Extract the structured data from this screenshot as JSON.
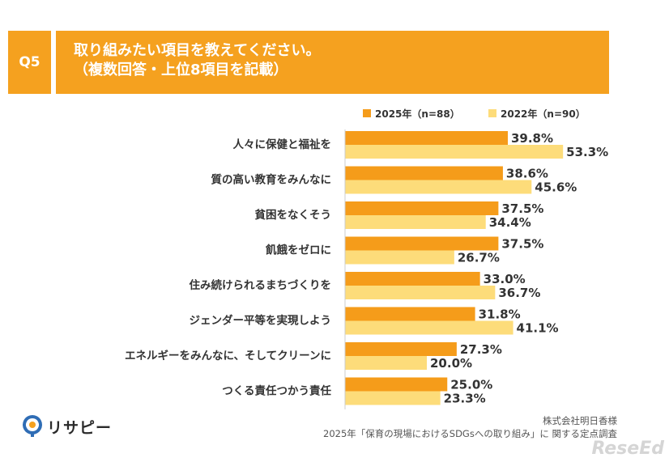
{
  "badge": "Q5",
  "title": {
    "line1": "取り組みたい項目を教えてください。",
    "line2": "（複数回答・上位8項目を記載）"
  },
  "colors": {
    "accent": "#f5a11f",
    "series_2025": "#f59c1a",
    "series_2022": "#fddc7a"
  },
  "chart_data": {
    "type": "bar",
    "orientation": "horizontal",
    "title": "取り組みたい項目を教えてください。（複数回答・上位8項目を記載）",
    "categories": [
      "人々に保健と福祉を",
      "質の高い教育をみんなに",
      "貧困をなくそう",
      "飢餓をゼロに",
      "住み続けられるまちづくりを",
      "ジェンダー平等を実現しよう",
      "エネルギーをみんなに、そしてクリーンに",
      "つくる責任つかう責任"
    ],
    "series": [
      {
        "name": "2025年（n=88）",
        "values": [
          39.8,
          38.6,
          37.5,
          37.5,
          33.0,
          31.8,
          27.3,
          25.0
        ],
        "labels": [
          "39.8%",
          "38.6%",
          "37.5%",
          "37.5%",
          "33.0%",
          "31.8%",
          "27.3%",
          "25.0%"
        ]
      },
      {
        "name": "2022年（n=90）",
        "values": [
          53.3,
          45.6,
          34.4,
          26.7,
          36.7,
          41.1,
          20.0,
          23.3
        ],
        "labels": [
          "53.3%",
          "45.6%",
          "34.4%",
          "26.7%",
          "36.7%",
          "41.1%",
          "20.0%",
          "23.3%"
        ]
      }
    ],
    "xlim": [
      0,
      100
    ],
    "legend_position": "top-center",
    "grid": false
  },
  "logo": {
    "name": "リサピー",
    "icon": "rsp-logo-icon"
  },
  "source": {
    "line1": "株式会社明日香様",
    "line2": "2025年「保育の現場におけるSDGsへの取り組み」に 関する定点調査"
  },
  "watermark": "ReseEd"
}
